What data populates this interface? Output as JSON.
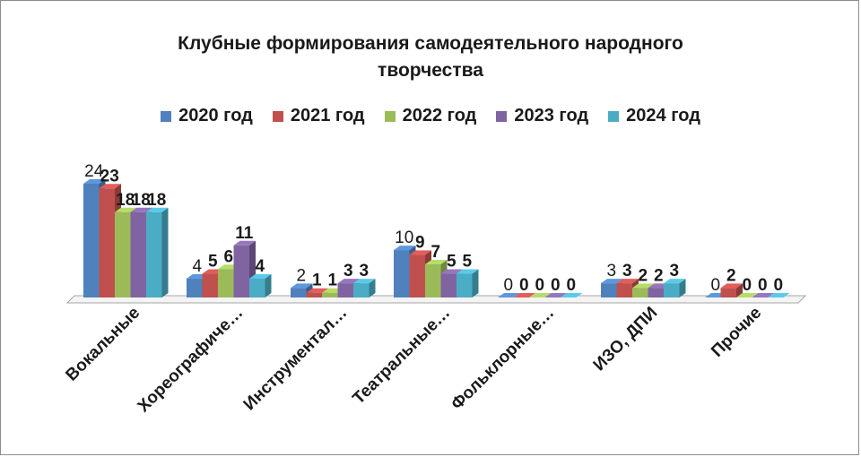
{
  "chart_data": {
    "type": "bar",
    "title_lines": [
      "Клубные формирования самодеятельного народного",
      "творчества"
    ],
    "categories": [
      "Вокальные",
      "Хореографиче…",
      "Инструментал…",
      "Театральные…",
      "Фольклорные…",
      "ИЗО, ДПИ",
      "Прочие"
    ],
    "series": [
      {
        "name": "2020 год",
        "color": "#4F81BD",
        "values": [
          24,
          4,
          2,
          10,
          0,
          3,
          0
        ]
      },
      {
        "name": "2021 год",
        "color": "#C0504D",
        "values": [
          23,
          5,
          1,
          9,
          0,
          3,
          2
        ]
      },
      {
        "name": "2022 год",
        "color": "#9BBB59",
        "values": [
          18,
          6,
          1,
          7,
          0,
          2,
          0
        ]
      },
      {
        "name": "2023 год",
        "color": "#8064A2",
        "values": [
          18,
          11,
          3,
          5,
          0,
          2,
          0
        ]
      },
      {
        "name": "2024 год",
        "color": "#4BACC6",
        "values": [
          18,
          4,
          3,
          5,
          0,
          3,
          0
        ]
      }
    ],
    "bold_labels": [
      [
        false,
        true,
        true,
        true,
        true
      ],
      [
        false,
        true,
        true,
        true,
        true
      ],
      [
        false,
        true,
        true,
        true,
        true
      ],
      [
        false,
        true,
        true,
        true,
        true
      ],
      [
        false,
        true,
        true,
        true,
        true
      ],
      [
        false,
        true,
        true,
        true,
        true
      ],
      [
        false,
        true,
        true,
        true,
        true
      ]
    ],
    "ylim": [
      0,
      24
    ],
    "grid": false,
    "legend_position": "top"
  }
}
